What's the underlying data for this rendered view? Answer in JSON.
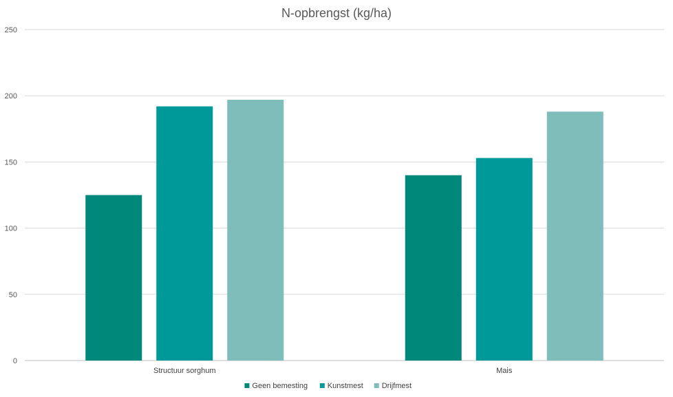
{
  "chart_data": {
    "type": "bar",
    "title": "N-opbrengst (kg/ha)",
    "xlabel": "",
    "ylabel": "",
    "ylim": [
      0,
      250
    ],
    "yticks": [
      0,
      50,
      100,
      150,
      200,
      250
    ],
    "grid": true,
    "legend_position": "bottom",
    "categories": [
      "Structuur sorghum",
      "Mais"
    ],
    "series": [
      {
        "name": "Geen bemesting",
        "color": "#00897b",
        "values": [
          125,
          140
        ]
      },
      {
        "name": "Kunstmest",
        "color": "#009999",
        "values": [
          192,
          153
        ]
      },
      {
        "name": "Drijfmest",
        "color": "#7fbdbb",
        "values": [
          197,
          188
        ]
      }
    ]
  }
}
